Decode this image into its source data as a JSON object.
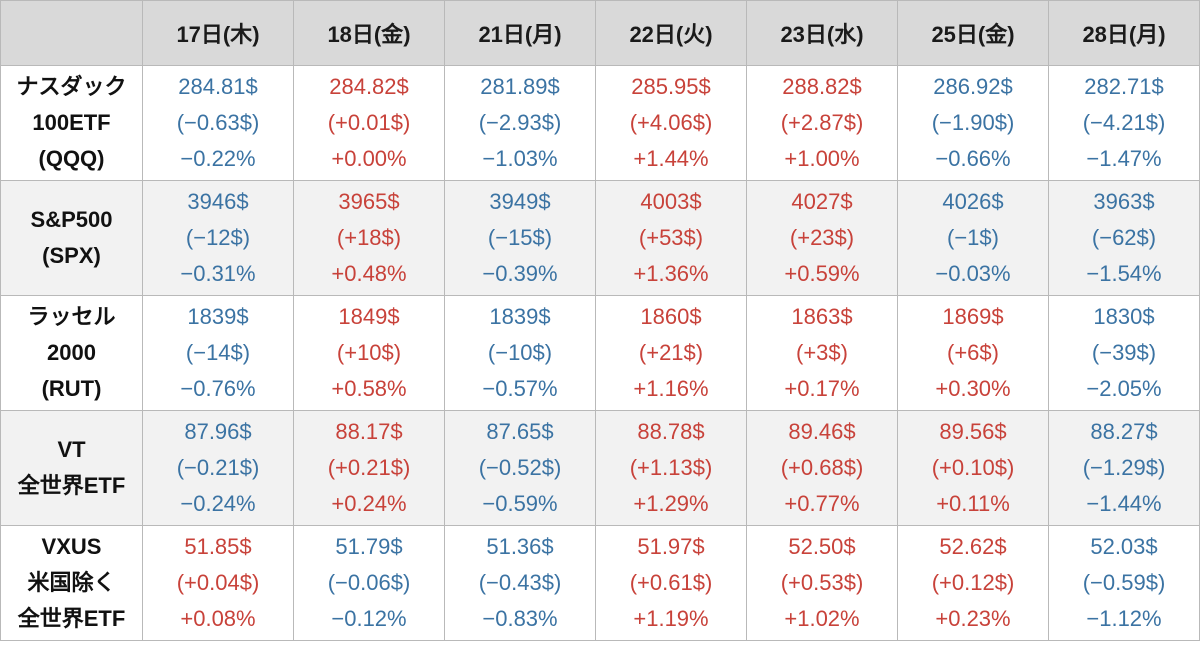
{
  "colors": {
    "up": "#c8423a",
    "down": "#3b73a3",
    "header_bg": "#d9d9d9",
    "stripe_bg": "#f2f2f2"
  },
  "header": {
    "corner": "",
    "days": [
      "17日(木)",
      "18日(金)",
      "21日(月)",
      "22日(火)",
      "23日(水)",
      "25日(金)",
      "28日(月)"
    ]
  },
  "rows": [
    {
      "label": [
        "ナスダック",
        "100ETF",
        "(QQQ)"
      ],
      "cells": [
        {
          "dir": "down",
          "price": "284.81$",
          "change": "(−0.63$)",
          "pct": "−0.22%"
        },
        {
          "dir": "up",
          "price": "284.82$",
          "change": "(+0.01$)",
          "pct": "+0.00%"
        },
        {
          "dir": "down",
          "price": "281.89$",
          "change": "(−2.93$)",
          "pct": "−1.03%"
        },
        {
          "dir": "up",
          "price": "285.95$",
          "change": "(+4.06$)",
          "pct": "+1.44%"
        },
        {
          "dir": "up",
          "price": "288.82$",
          "change": "(+2.87$)",
          "pct": "+1.00%"
        },
        {
          "dir": "down",
          "price": "286.92$",
          "change": "(−1.90$)",
          "pct": "−0.66%"
        },
        {
          "dir": "down",
          "price": "282.71$",
          "change": "(−4.21$)",
          "pct": "−1.47%"
        }
      ]
    },
    {
      "label": [
        "S&P500",
        "(SPX)"
      ],
      "cells": [
        {
          "dir": "down",
          "price": "3946$",
          "change": "(−12$)",
          "pct": "−0.31%"
        },
        {
          "dir": "up",
          "price": "3965$",
          "change": "(+18$)",
          "pct": "+0.48%"
        },
        {
          "dir": "down",
          "price": "3949$",
          "change": "(−15$)",
          "pct": "−0.39%"
        },
        {
          "dir": "up",
          "price": "4003$",
          "change": "(+53$)",
          "pct": "+1.36%"
        },
        {
          "dir": "up",
          "price": "4027$",
          "change": "(+23$)",
          "pct": "+0.59%"
        },
        {
          "dir": "down",
          "price": "4026$",
          "change": "(−1$)",
          "pct": "−0.03%"
        },
        {
          "dir": "down",
          "price": "3963$",
          "change": "(−62$)",
          "pct": "−1.54%"
        }
      ]
    },
    {
      "label": [
        "ラッセル",
        "2000",
        "(RUT)"
      ],
      "cells": [
        {
          "dir": "down",
          "price": "1839$",
          "change": "(−14$)",
          "pct": "−0.76%"
        },
        {
          "dir": "up",
          "price": "1849$",
          "change": "(+10$)",
          "pct": "+0.58%"
        },
        {
          "dir": "down",
          "price": "1839$",
          "change": "(−10$)",
          "pct": "−0.57%"
        },
        {
          "dir": "up",
          "price": "1860$",
          "change": "(+21$)",
          "pct": "+1.16%"
        },
        {
          "dir": "up",
          "price": "1863$",
          "change": "(+3$)",
          "pct": "+0.17%"
        },
        {
          "dir": "up",
          "price": "1869$",
          "change": "(+6$)",
          "pct": "+0.30%"
        },
        {
          "dir": "down",
          "price": "1830$",
          "change": "(−39$)",
          "pct": "−2.05%"
        }
      ]
    },
    {
      "label": [
        "VT",
        "全世界ETF"
      ],
      "cells": [
        {
          "dir": "down",
          "price": "87.96$",
          "change": "(−0.21$)",
          "pct": "−0.24%"
        },
        {
          "dir": "up",
          "price": "88.17$",
          "change": "(+0.21$)",
          "pct": "+0.24%"
        },
        {
          "dir": "down",
          "price": "87.65$",
          "change": "(−0.52$)",
          "pct": "−0.59%"
        },
        {
          "dir": "up",
          "price": "88.78$",
          "change": "(+1.13$)",
          "pct": "+1.29%"
        },
        {
          "dir": "up",
          "price": "89.46$",
          "change": "(+0.68$)",
          "pct": "+0.77%"
        },
        {
          "dir": "up",
          "price": "89.56$",
          "change": "(+0.10$)",
          "pct": "+0.11%"
        },
        {
          "dir": "down",
          "price": "88.27$",
          "change": "(−1.29$)",
          "pct": "−1.44%"
        }
      ]
    },
    {
      "label": [
        "VXUS",
        "米国除く",
        "全世界ETF"
      ],
      "cells": [
        {
          "dir": "up",
          "price": "51.85$",
          "change": "(+0.04$)",
          "pct": "+0.08%"
        },
        {
          "dir": "down",
          "price": "51.79$",
          "change": "(−0.06$)",
          "pct": "−0.12%"
        },
        {
          "dir": "down",
          "price": "51.36$",
          "change": "(−0.43$)",
          "pct": "−0.83%"
        },
        {
          "dir": "up",
          "price": "51.97$",
          "change": "(+0.61$)",
          "pct": "+1.19%"
        },
        {
          "dir": "up",
          "price": "52.50$",
          "change": "(+0.53$)",
          "pct": "+1.02%"
        },
        {
          "dir": "up",
          "price": "52.62$",
          "change": "(+0.12$)",
          "pct": "+0.23%"
        },
        {
          "dir": "down",
          "price": "52.03$",
          "change": "(−0.59$)",
          "pct": "−1.12%"
        }
      ]
    }
  ]
}
